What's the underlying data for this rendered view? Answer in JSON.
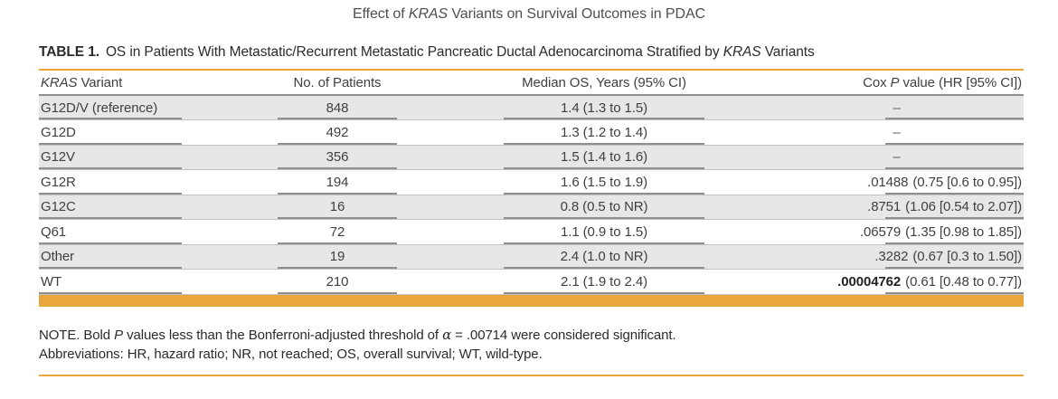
{
  "colors": {
    "accent": "#E9A63A",
    "row_shade": "#E7E7E7"
  },
  "page_title": {
    "pre": "Effect of ",
    "italic": "KRAS",
    "post": " Variants on Survival Outcomes in PDAC"
  },
  "caption": {
    "label": "TABLE 1.",
    "pre": "OS in Patients With Metastatic/Recurrent Metastatic Pancreatic Ductal Adenocarcinoma Stratified by ",
    "italic": "KRAS",
    "post": " Variants"
  },
  "table": {
    "columns": {
      "variant": {
        "italic": "KRAS",
        "rest": " Variant"
      },
      "patients": "No. of Patients",
      "os": "Median OS, Years (95% CI)",
      "cox": {
        "pre": "Cox ",
        "italic": "P",
        "rest": " value (HR [95% CI])"
      }
    },
    "rows": [
      {
        "variant": "G12D/V (reference)",
        "patients": "848",
        "os": "1.4 (1.3 to 1.5)",
        "cox_p": "–",
        "cox_ci": ""
      },
      {
        "variant": "G12D",
        "patients": "492",
        "os": "1.3 (1.2 to 1.4)",
        "cox_p": "–",
        "cox_ci": ""
      },
      {
        "variant": "G12V",
        "patients": "356",
        "os": "1.5 (1.4 to 1.6)",
        "cox_p": "–",
        "cox_ci": ""
      },
      {
        "variant": "G12R",
        "patients": "194",
        "os": "1.6 (1.5 to 1.9)",
        "cox_p": ".01488",
        "cox_ci": "(0.75 [0.6 to 0.95])"
      },
      {
        "variant": "G12C",
        "patients": "16",
        "os": "0.8 (0.5 to NR)",
        "cox_p": ".8751",
        "cox_ci": "(1.06 [0.54 to 2.07])"
      },
      {
        "variant": "Q61",
        "patients": "72",
        "os": "1.1 (0.9 to 1.5)",
        "cox_p": ".06579",
        "cox_ci": "(1.35 [0.98 to 1.85])"
      },
      {
        "variant": "Other",
        "patients": "19",
        "os": "2.4 (1.0 to NR)",
        "cox_p": ".3282",
        "cox_ci": "(0.67 [0.3 to 1.50])"
      },
      {
        "variant": "WT",
        "patients": "210",
        "os": "2.1 (1.9 to 2.4)",
        "cox_p": ".00004762",
        "cox_ci": "(0.61 [0.48 to 0.77])"
      }
    ]
  },
  "note": {
    "pre": "NOTE. Bold ",
    "italic": "P",
    "mid": " values less than the Bonferroni-adjusted threshold of ",
    "alpha": "α",
    "post": " = .00714 were considered significant."
  },
  "abbreviations": "Abbreviations: HR, hazard ratio; NR, not reached; OS, overall survival; WT, wild-type."
}
